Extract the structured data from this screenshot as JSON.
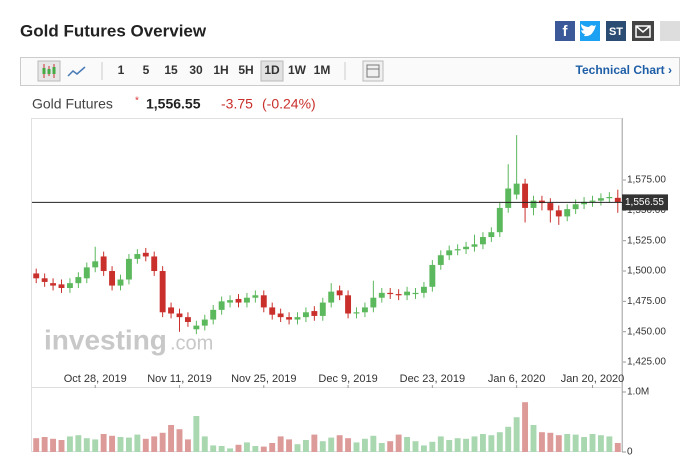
{
  "header": {
    "title": "Gold Futures Overview",
    "share_icons": [
      "f",
      "ST"
    ]
  },
  "toolbar": {
    "buttons": [
      "1",
      "5",
      "15",
      "30",
      "1H",
      "5H",
      "1D",
      "1W",
      "1M"
    ],
    "active": "1D",
    "link": "Technical Chart ›"
  },
  "quote": {
    "name": "Gold Futures",
    "last": "1,556.55",
    "change": "-3.75",
    "change_pct": "(-0.24%)"
  },
  "watermark": [
    "investing",
    ".com"
  ],
  "chart_data": {
    "type": "candlestick",
    "categories": [
      null,
      null,
      null,
      null,
      null,
      null,
      null,
      "Oct 28, 2019",
      null,
      null,
      null,
      null,
      null,
      null,
      null,
      null,
      null,
      "Nov 11, 2019",
      null,
      null,
      null,
      null,
      null,
      null,
      null,
      null,
      null,
      "Nov 25, 2019",
      null,
      null,
      null,
      null,
      null,
      null,
      null,
      null,
      null,
      "Dec 9, 2019",
      null,
      null,
      null,
      null,
      null,
      null,
      null,
      null,
      null,
      "Dec 23, 2019",
      null,
      null,
      null,
      null,
      null,
      null,
      null,
      null,
      null,
      "Jan 6, 2020",
      null,
      null,
      null,
      null,
      null,
      null,
      null,
      null,
      "Jan 20, 2020",
      null,
      null,
      null
    ],
    "open": [
      1498,
      1494,
      1490,
      1489,
      1486,
      1490,
      1494,
      1503,
      1512,
      1500,
      1488,
      1493,
      1510,
      1515,
      1512,
      1500,
      1470,
      1465,
      1462,
      1452,
      1455,
      1460,
      1468,
      1474,
      1477,
      1474,
      1478,
      1480,
      1470,
      1465,
      1462,
      1460,
      1462,
      1467,
      1463,
      1474,
      1484,
      1480,
      1465,
      1466,
      1470,
      1478,
      1482,
      1481,
      1480,
      1481,
      1482,
      1487,
      1505,
      1513,
      1517,
      1518,
      1520,
      1522,
      1528,
      1532,
      1552,
      1563,
      1572,
      1552,
      1558,
      1556,
      1550,
      1545,
      1551,
      1555,
      1557,
      1558,
      1560,
      1560.3
    ],
    "high": [
      1502,
      1498,
      1494,
      1493,
      1494,
      1499,
      1507,
      1520,
      1516,
      1504,
      1497,
      1514,
      1518,
      1519,
      1516,
      1504,
      1474,
      1469,
      1466,
      1459,
      1464,
      1472,
      1479,
      1480,
      1481,
      1482,
      1484,
      1484,
      1474,
      1469,
      1466,
      1466,
      1470,
      1471,
      1478,
      1490,
      1488,
      1484,
      1470,
      1474,
      1492,
      1486,
      1486,
      1485,
      1487,
      1486,
      1491,
      1509,
      1517,
      1521,
      1522,
      1524,
      1530,
      1532,
      1536,
      1556,
      1588,
      1612,
      1576,
      1562,
      1562,
      1560,
      1554,
      1555,
      1559,
      1561,
      1562,
      1564,
      1565,
      1567
    ],
    "low": [
      1490,
      1487,
      1484,
      1482,
      1482,
      1486,
      1490,
      1499,
      1496,
      1484,
      1484,
      1489,
      1506,
      1508,
      1496,
      1462,
      1461,
      1450,
      1454,
      1448,
      1451,
      1456,
      1464,
      1470,
      1470,
      1470,
      1474,
      1466,
      1460,
      1458,
      1456,
      1456,
      1458,
      1459,
      1459,
      1470,
      1476,
      1461,
      1461,
      1462,
      1466,
      1474,
      1477,
      1476,
      1476,
      1477,
      1478,
      1483,
      1501,
      1509,
      1513,
      1514,
      1516,
      1518,
      1524,
      1528,
      1548,
      1559,
      1540,
      1546,
      1550,
      1540,
      1538,
      1541,
      1547,
      1551,
      1553,
      1554,
      1556,
      1548
    ],
    "close": [
      1494,
      1491,
      1488,
      1486,
      1490,
      1495,
      1503,
      1508,
      1500,
      1488,
      1493,
      1510,
      1514,
      1512,
      1500,
      1466,
      1465,
      1462,
      1458,
      1455,
      1460,
      1468,
      1475,
      1476,
      1474,
      1478,
      1480,
      1470,
      1464,
      1462,
      1460,
      1462,
      1466,
      1463,
      1474,
      1483,
      1480,
      1465,
      1466,
      1470,
      1478,
      1482,
      1481,
      1480,
      1483,
      1482,
      1487,
      1505,
      1513,
      1517,
      1518,
      1520,
      1522,
      1528,
      1532,
      1552,
      1568,
      1572,
      1552,
      1558,
      1556,
      1550,
      1545,
      1551,
      1555,
      1557,
      1558,
      1560,
      1561,
      1556.55
    ],
    "volume": [
      230000,
      250000,
      220000,
      200000,
      260000,
      280000,
      230000,
      210000,
      300000,
      270000,
      250000,
      240000,
      290000,
      220000,
      260000,
      320000,
      450000,
      380000,
      210000,
      600000,
      260000,
      110000,
      100000,
      60000,
      120000,
      160000,
      100000,
      90000,
      150000,
      260000,
      210000,
      130000,
      200000,
      290000,
      180000,
      240000,
      280000,
      230000,
      160000,
      220000,
      270000,
      150000,
      180000,
      290000,
      250000,
      180000,
      110000,
      170000,
      260000,
      200000,
      230000,
      220000,
      260000,
      300000,
      280000,
      330000,
      420000,
      580000,
      830000,
      450000,
      330000,
      320000,
      280000,
      300000,
      290000,
      250000,
      300000,
      280000,
      260000,
      150000
    ],
    "ylim": [
      1410.2,
      1616.2
    ],
    "yticks": [
      {
        "value": 1425,
        "label": "1,425.00"
      },
      {
        "value": 1450,
        "label": "1,450.00"
      },
      {
        "value": 1475,
        "label": "1,475.00"
      },
      {
        "value": 1500,
        "label": "1,500.00"
      },
      {
        "value": 1525,
        "label": "1,525.00"
      },
      {
        "value": 1550,
        "label": "1,550.00"
      },
      {
        "value": 1575,
        "label": "1,575.00"
      }
    ],
    "last_price": {
      "value": 1556.55,
      "label": "1,556.55"
    },
    "volume_ylim": [
      0,
      1000000
    ],
    "volume_yticks": [
      0,
      {
        "value": 1000000,
        "label": "1.0M"
      }
    ],
    "up_color": "#5cb85c",
    "down_color": "#c9302c",
    "volume_up_color": "#a9d8b0",
    "volume_down_color": "#dc9a98"
  }
}
